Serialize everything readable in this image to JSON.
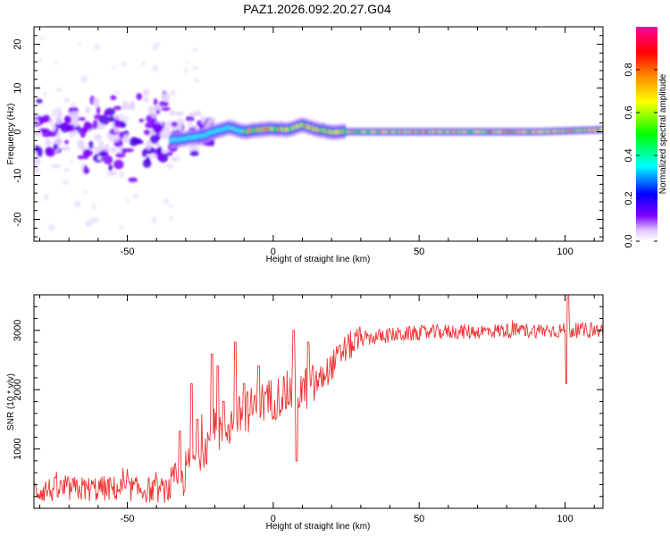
{
  "title": "PAZ1.2026.092.20.27.G04",
  "chart_data": [
    {
      "type": "heatmap",
      "xlabel": "Height of straight line (km)",
      "ylabel": "Frequency (Hz)",
      "xlim": [
        -82,
        113
      ],
      "ylim": [
        -25,
        24
      ],
      "x_ticks": [
        -50,
        0,
        50,
        100
      ],
      "y_ticks": [
        -20,
        -10,
        0,
        10,
        20
      ],
      "colorbar": {
        "label": "Normalized spectral amplitude",
        "range": [
          0,
          1
        ],
        "ticks": [
          0.0,
          0.2,
          0.4,
          0.6,
          0.8
        ],
        "tick_labels": [
          "0.0",
          "0.2",
          "0.4",
          "0.6",
          "0.8"
        ],
        "colors": [
          "#ffffff",
          "#7d00ff",
          "#0000ff",
          "#00ffff",
          "#00ff00",
          "#ffff00",
          "#ff8000",
          "#ff0000",
          "#ff00a0"
        ]
      },
      "signal_track": {
        "x": [
          -35,
          -30,
          -25,
          -20,
          -15,
          -10,
          -5,
          0,
          5,
          10,
          15,
          20,
          30,
          50,
          70,
          90,
          100,
          113
        ],
        "frequency": [
          -2,
          -1.5,
          -1,
          0,
          1,
          0,
          0.5,
          0.7,
          0.5,
          1.5,
          0.5,
          0,
          0,
          0,
          0,
          0,
          0.2,
          0.5
        ]
      }
    },
    {
      "type": "line",
      "xlabel": "Height of straight line (km)",
      "ylabel": "SNR (10 * v/v)",
      "xlim": [
        -82,
        113
      ],
      "ylim": [
        0,
        3600
      ],
      "x_ticks": [
        -50,
        0,
        50,
        100
      ],
      "y_ticks": [
        1000,
        2000,
        3000
      ],
      "color": "#ee3333",
      "envelope": {
        "x": [
          -82,
          -70,
          -60,
          -50,
          -40,
          -35,
          -30,
          -25,
          -20,
          -15,
          -10,
          -5,
          0,
          5,
          10,
          15,
          20,
          25,
          30,
          40,
          50,
          60,
          70,
          80,
          90,
          100,
          105,
          113
        ],
        "y": [
          300,
          320,
          330,
          330,
          300,
          320,
          600,
          1000,
          1250,
          1400,
          1600,
          1750,
          1850,
          1950,
          2000,
          2100,
          2400,
          2700,
          2850,
          2920,
          2950,
          2980,
          2980,
          3000,
          3000,
          3000,
          3000,
          3000
        ]
      },
      "spikes": [
        {
          "x": -32,
          "y": 1300
        },
        {
          "x": -28,
          "y": 2100
        },
        {
          "x": -26,
          "y": 1500
        },
        {
          "x": -21,
          "y": 2600
        },
        {
          "x": -19,
          "y": 2400
        },
        {
          "x": -17,
          "y": 1800
        },
        {
          "x": -13,
          "y": 2800
        },
        {
          "x": -10,
          "y": 2100
        },
        {
          "x": -5,
          "y": 2400
        },
        {
          "x": 7,
          "y": 3000
        },
        {
          "x": 8,
          "y": 800
        },
        {
          "x": 12,
          "y": 2800
        },
        {
          "x": 100.5,
          "y": 2100
        },
        {
          "x": 101,
          "y": 3600
        }
      ]
    }
  ]
}
